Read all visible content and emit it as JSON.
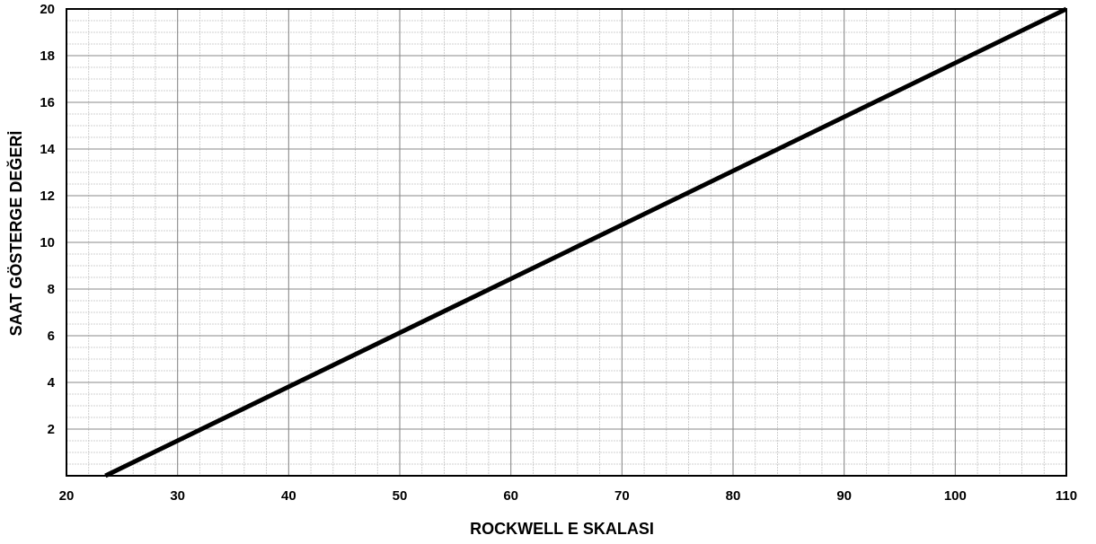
{
  "chart_data": {
    "type": "line",
    "title": "",
    "xlabel": "ROCKWELL E SKALASI",
    "ylabel": "SAAT GÖSTERGE DEĞERİ",
    "xlim": [
      20,
      110
    ],
    "ylim": [
      0,
      20
    ],
    "x_ticks": [
      "20",
      "30",
      "40",
      "50",
      "60",
      "70",
      "80",
      "90",
      "100",
      "110"
    ],
    "y_ticks": [
      "2",
      "4",
      "6",
      "8",
      "10",
      "12",
      "14",
      "16",
      "18",
      "20"
    ],
    "grid": true,
    "series": [
      {
        "x": [
          23.5,
          110
        ],
        "y": [
          0,
          20
        ],
        "color": "#000000"
      }
    ]
  }
}
